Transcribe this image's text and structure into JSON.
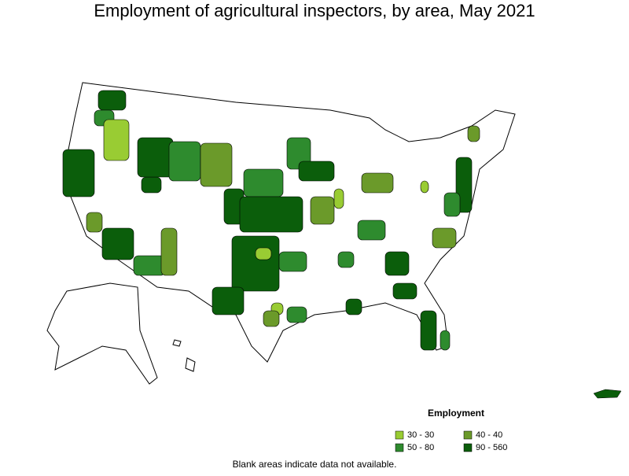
{
  "title": "Employment of agricultural inspectors, by area, May 2021",
  "legend": {
    "title": "Employment",
    "items": [
      {
        "label": "30 - 30",
        "color": "#99cc33"
      },
      {
        "label": "40 - 40",
        "color": "#6b9a2a"
      },
      {
        "label": "50 - 80",
        "color": "#2e8b2e"
      },
      {
        "label": "90 - 560",
        "color": "#0b5e0b"
      }
    ]
  },
  "note": "Blank areas indicate data not available."
}
